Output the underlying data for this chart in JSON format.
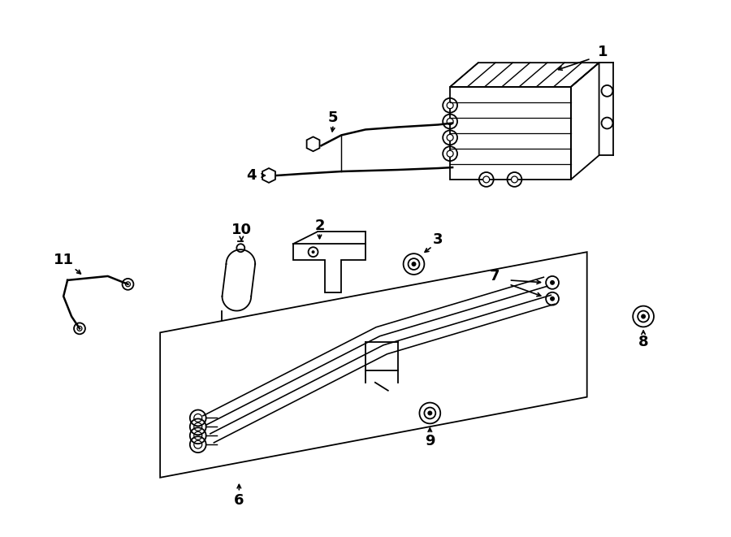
{
  "bg_color": "#ffffff",
  "line_color": "#000000",
  "lw": 1.3,
  "fig_width": 9.0,
  "fig_height": 6.61
}
